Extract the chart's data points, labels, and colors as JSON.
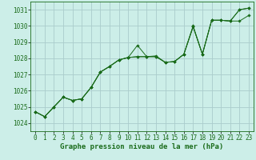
{
  "title": "Graphe pression niveau de la mer (hPa)",
  "bg_color": "#cceee8",
  "grid_color": "#aacccc",
  "line_color": "#1a6b1a",
  "marker_color": "#1a6b1a",
  "ylim": [
    1023.5,
    1031.5
  ],
  "yticks": [
    1024,
    1025,
    1026,
    1027,
    1028,
    1029,
    1030,
    1031
  ],
  "xlim": [
    -0.5,
    23.5
  ],
  "xticks": [
    0,
    1,
    2,
    3,
    4,
    5,
    6,
    7,
    8,
    9,
    10,
    11,
    12,
    13,
    14,
    15,
    16,
    17,
    18,
    19,
    20,
    21,
    22,
    23
  ],
  "series": [
    [
      1024.7,
      1024.4,
      1025.0,
      1025.6,
      1025.4,
      1025.5,
      1026.2,
      1027.15,
      1027.5,
      1027.9,
      1028.05,
      1028.8,
      1028.1,
      1028.1,
      1027.75,
      1027.8,
      1028.25,
      1030.0,
      1028.25,
      1030.35,
      1030.35,
      1030.3,
      1030.3,
      1030.65
    ],
    [
      1024.7,
      1024.4,
      1025.0,
      1025.6,
      1025.4,
      1025.5,
      1026.2,
      1027.15,
      1027.5,
      1027.9,
      1028.05,
      1028.1,
      1028.1,
      1028.1,
      1027.75,
      1027.8,
      1028.25,
      1029.95,
      1028.25,
      1030.35,
      1030.35,
      1030.3,
      1031.0,
      1031.1
    ],
    [
      1024.7,
      1024.4,
      1025.0,
      1025.6,
      1025.4,
      1025.5,
      1026.2,
      1027.15,
      1027.5,
      1027.9,
      1028.05,
      1028.1,
      1028.1,
      1028.15,
      1027.75,
      1027.8,
      1028.25,
      1029.95,
      1028.25,
      1030.35,
      1030.35,
      1030.3,
      1031.0,
      1031.1
    ]
  ],
  "tick_fontsize": 5.5,
  "title_fontsize": 6.5
}
